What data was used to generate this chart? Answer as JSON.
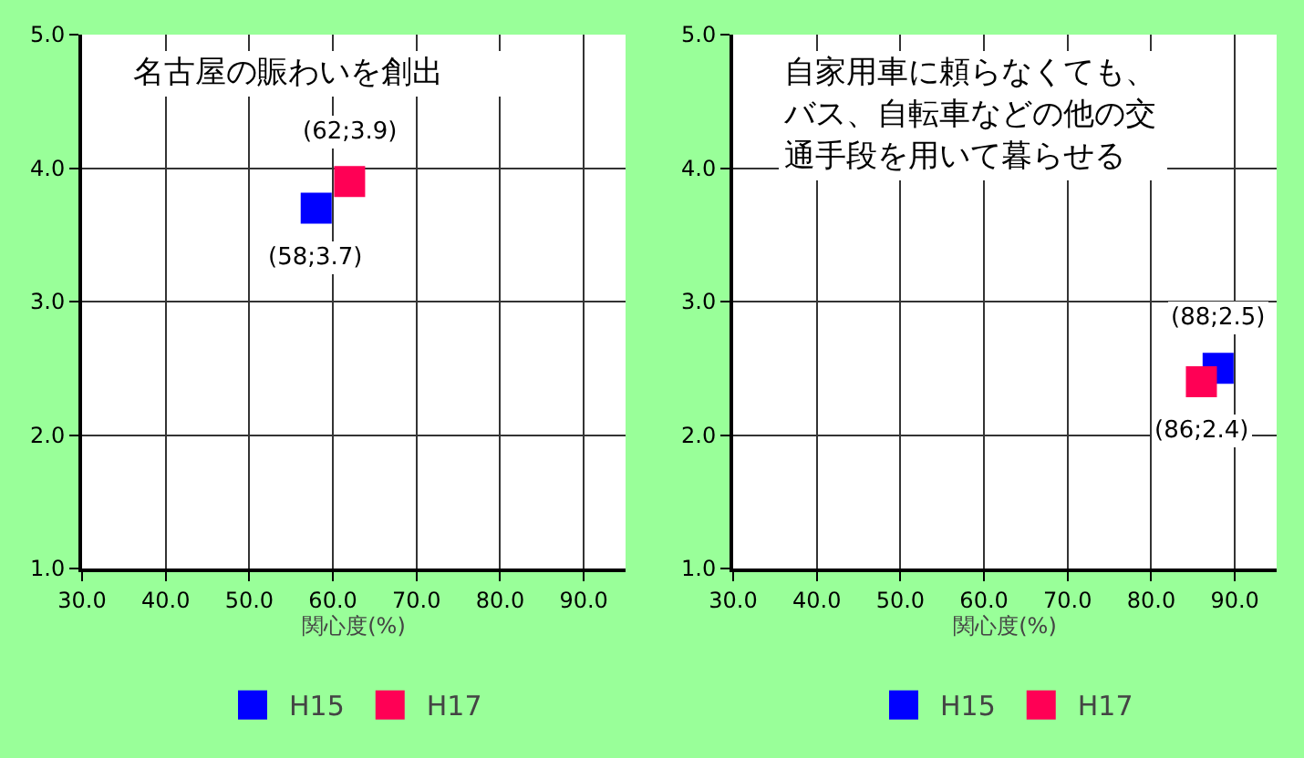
{
  "chart_data": [
    {
      "type": "scatter",
      "title": "名古屋の賑わいを創出",
      "xlabel": "関心度(%)",
      "xlim": [
        30,
        95
      ],
      "xticks": [
        {
          "value": 30,
          "label": "30.0"
        },
        {
          "value": 40,
          "label": "40.0"
        },
        {
          "value": 50,
          "label": "50.0"
        },
        {
          "value": 60,
          "label": "60.0"
        },
        {
          "value": 70,
          "label": "70.0"
        },
        {
          "value": 80,
          "label": "80.0"
        },
        {
          "value": 90,
          "label": "90.0"
        }
      ],
      "ylim": [
        1,
        5
      ],
      "yticks": [
        {
          "value": 1,
          "label": "1.0"
        },
        {
          "value": 2,
          "label": "2.0"
        },
        {
          "value": 3,
          "label": "3.0"
        },
        {
          "value": 4,
          "label": "4.0"
        },
        {
          "value": 5,
          "label": "5.0"
        }
      ],
      "grid": true,
      "legend": "bottom",
      "marker": "square",
      "series": [
        {
          "name": "H15",
          "color": "#0000ff",
          "x": [
            58
          ],
          "values": [
            3.7
          ],
          "value_labels": [
            "(58;3.7)"
          ]
        },
        {
          "name": "H17",
          "color": "#ff0055",
          "x": [
            62
          ],
          "values": [
            3.9
          ],
          "value_labels": [
            "(62;3.9)"
          ]
        }
      ]
    },
    {
      "type": "scatter",
      "title": "自家用車に頼らなくても、バス、自転車などの他の交通手段を用いて暮らせる",
      "xlabel": "関心度(%)",
      "xlim": [
        30,
        95
      ],
      "xticks": [
        {
          "value": 30,
          "label": "30.0"
        },
        {
          "value": 40,
          "label": "40.0"
        },
        {
          "value": 50,
          "label": "50.0"
        },
        {
          "value": 60,
          "label": "60.0"
        },
        {
          "value": 70,
          "label": "70.0"
        },
        {
          "value": 80,
          "label": "80.0"
        },
        {
          "value": 90,
          "label": "90.0"
        }
      ],
      "ylim": [
        1,
        5
      ],
      "yticks": [
        {
          "value": 1,
          "label": "1.0"
        },
        {
          "value": 2,
          "label": "2.0"
        },
        {
          "value": 3,
          "label": "3.0"
        },
        {
          "value": 4,
          "label": "4.0"
        },
        {
          "value": 5,
          "label": "5.0"
        }
      ],
      "grid": true,
      "legend": "bottom",
      "marker": "square",
      "series": [
        {
          "name": "H15",
          "color": "#0000ff",
          "x": [
            88
          ],
          "values": [
            2.5
          ],
          "value_labels": [
            "(88;2.5)"
          ]
        },
        {
          "name": "H17",
          "color": "#ff0055",
          "x": [
            86
          ],
          "values": [
            2.4
          ],
          "value_labels": [
            "(86;2.4)"
          ]
        }
      ]
    }
  ]
}
